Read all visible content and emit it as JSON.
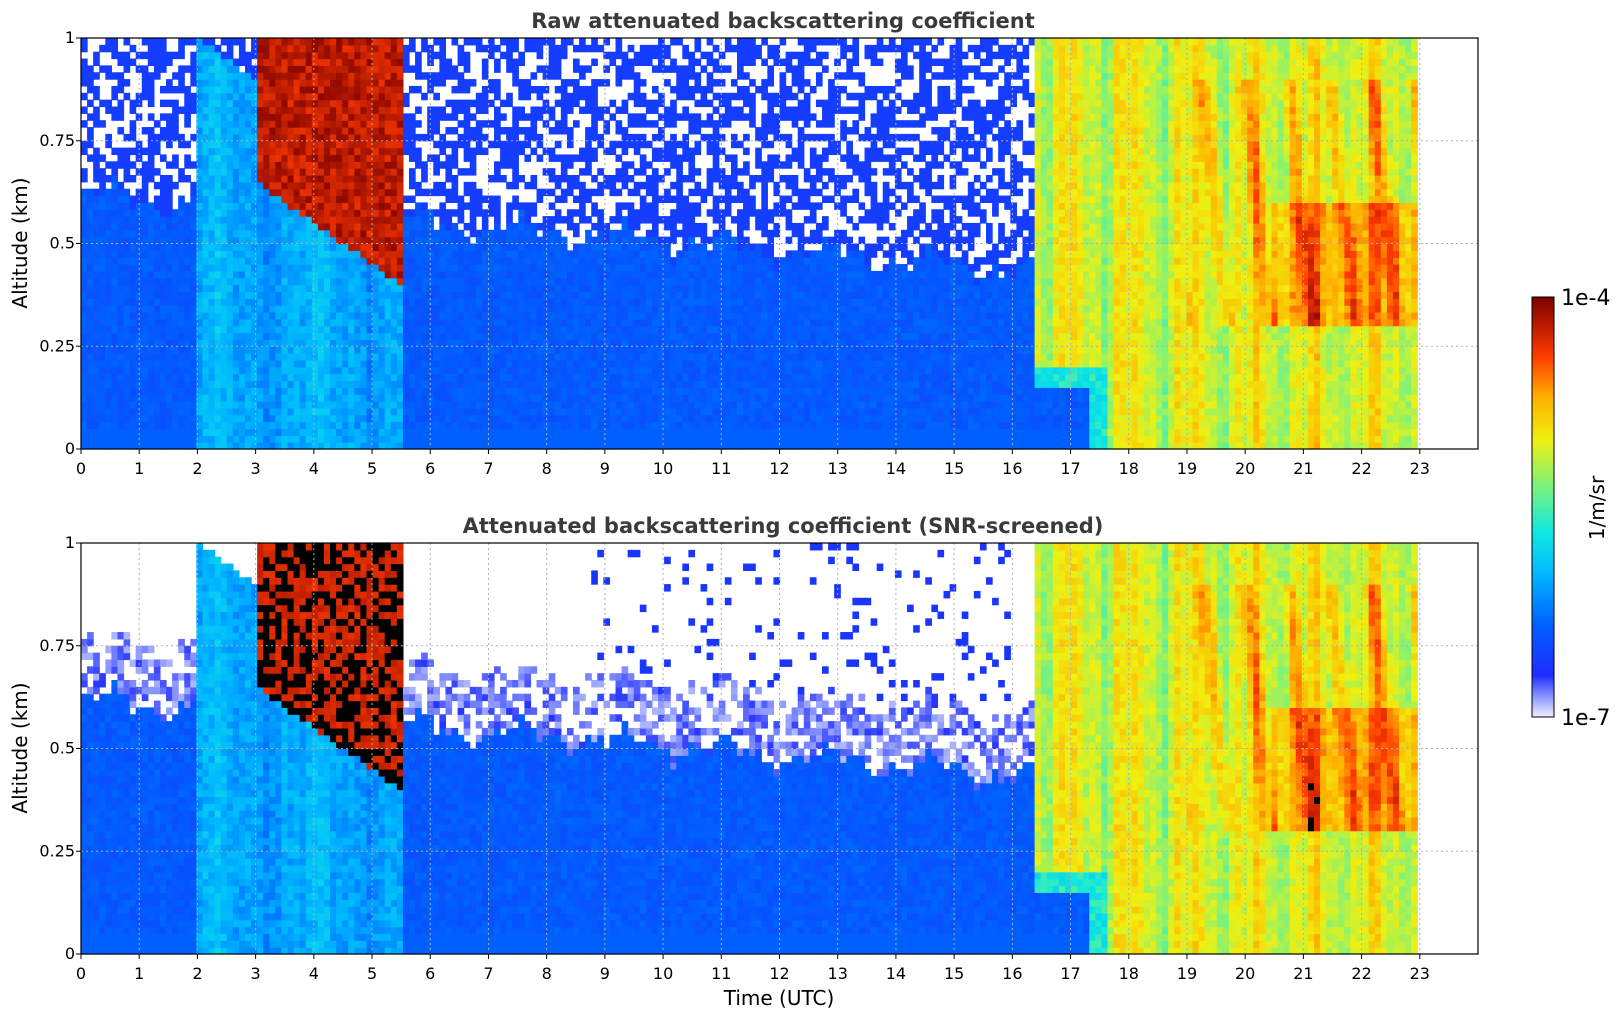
{
  "chart_data": [
    {
      "type": "heatmap",
      "title": "Raw attenuated backscattering coefficient",
      "xlabel": "",
      "ylabel": "Altitude (km)",
      "xlim": [
        0,
        24
      ],
      "ylim": [
        0,
        1
      ],
      "x_ticks": [
        "0",
        "1",
        "2",
        "3",
        "4",
        "5",
        "6",
        "7",
        "8",
        "9",
        "10",
        "11",
        "12",
        "13",
        "14",
        "15",
        "16",
        "17",
        "18",
        "19",
        "20",
        "21",
        "22",
        "23"
      ],
      "y_ticks": [
        "0",
        "0.25",
        "0.5",
        "0.75",
        "1"
      ],
      "grid": true,
      "data_end_hour": 23
    },
    {
      "type": "heatmap",
      "title": "Attenuated backscattering coefficient (SNR-screened)",
      "xlabel": "Time (UTC)",
      "ylabel": "Altitude (km)",
      "xlim": [
        0,
        24
      ],
      "ylim": [
        0,
        1
      ],
      "x_ticks": [
        "0",
        "1",
        "2",
        "3",
        "4",
        "5",
        "6",
        "7",
        "8",
        "9",
        "10",
        "11",
        "12",
        "13",
        "14",
        "15",
        "16",
        "17",
        "18",
        "19",
        "20",
        "21",
        "22",
        "23"
      ],
      "y_ticks": [
        "0",
        "0.25",
        "0.5",
        "0.75",
        "1"
      ],
      "grid": true,
      "data_end_hour": 23
    }
  ],
  "colorbar": {
    "label": "1/m/sr",
    "max_label": "1e-4",
    "min_label": "1e-7",
    "scale": "log",
    "colormap": "jet"
  }
}
